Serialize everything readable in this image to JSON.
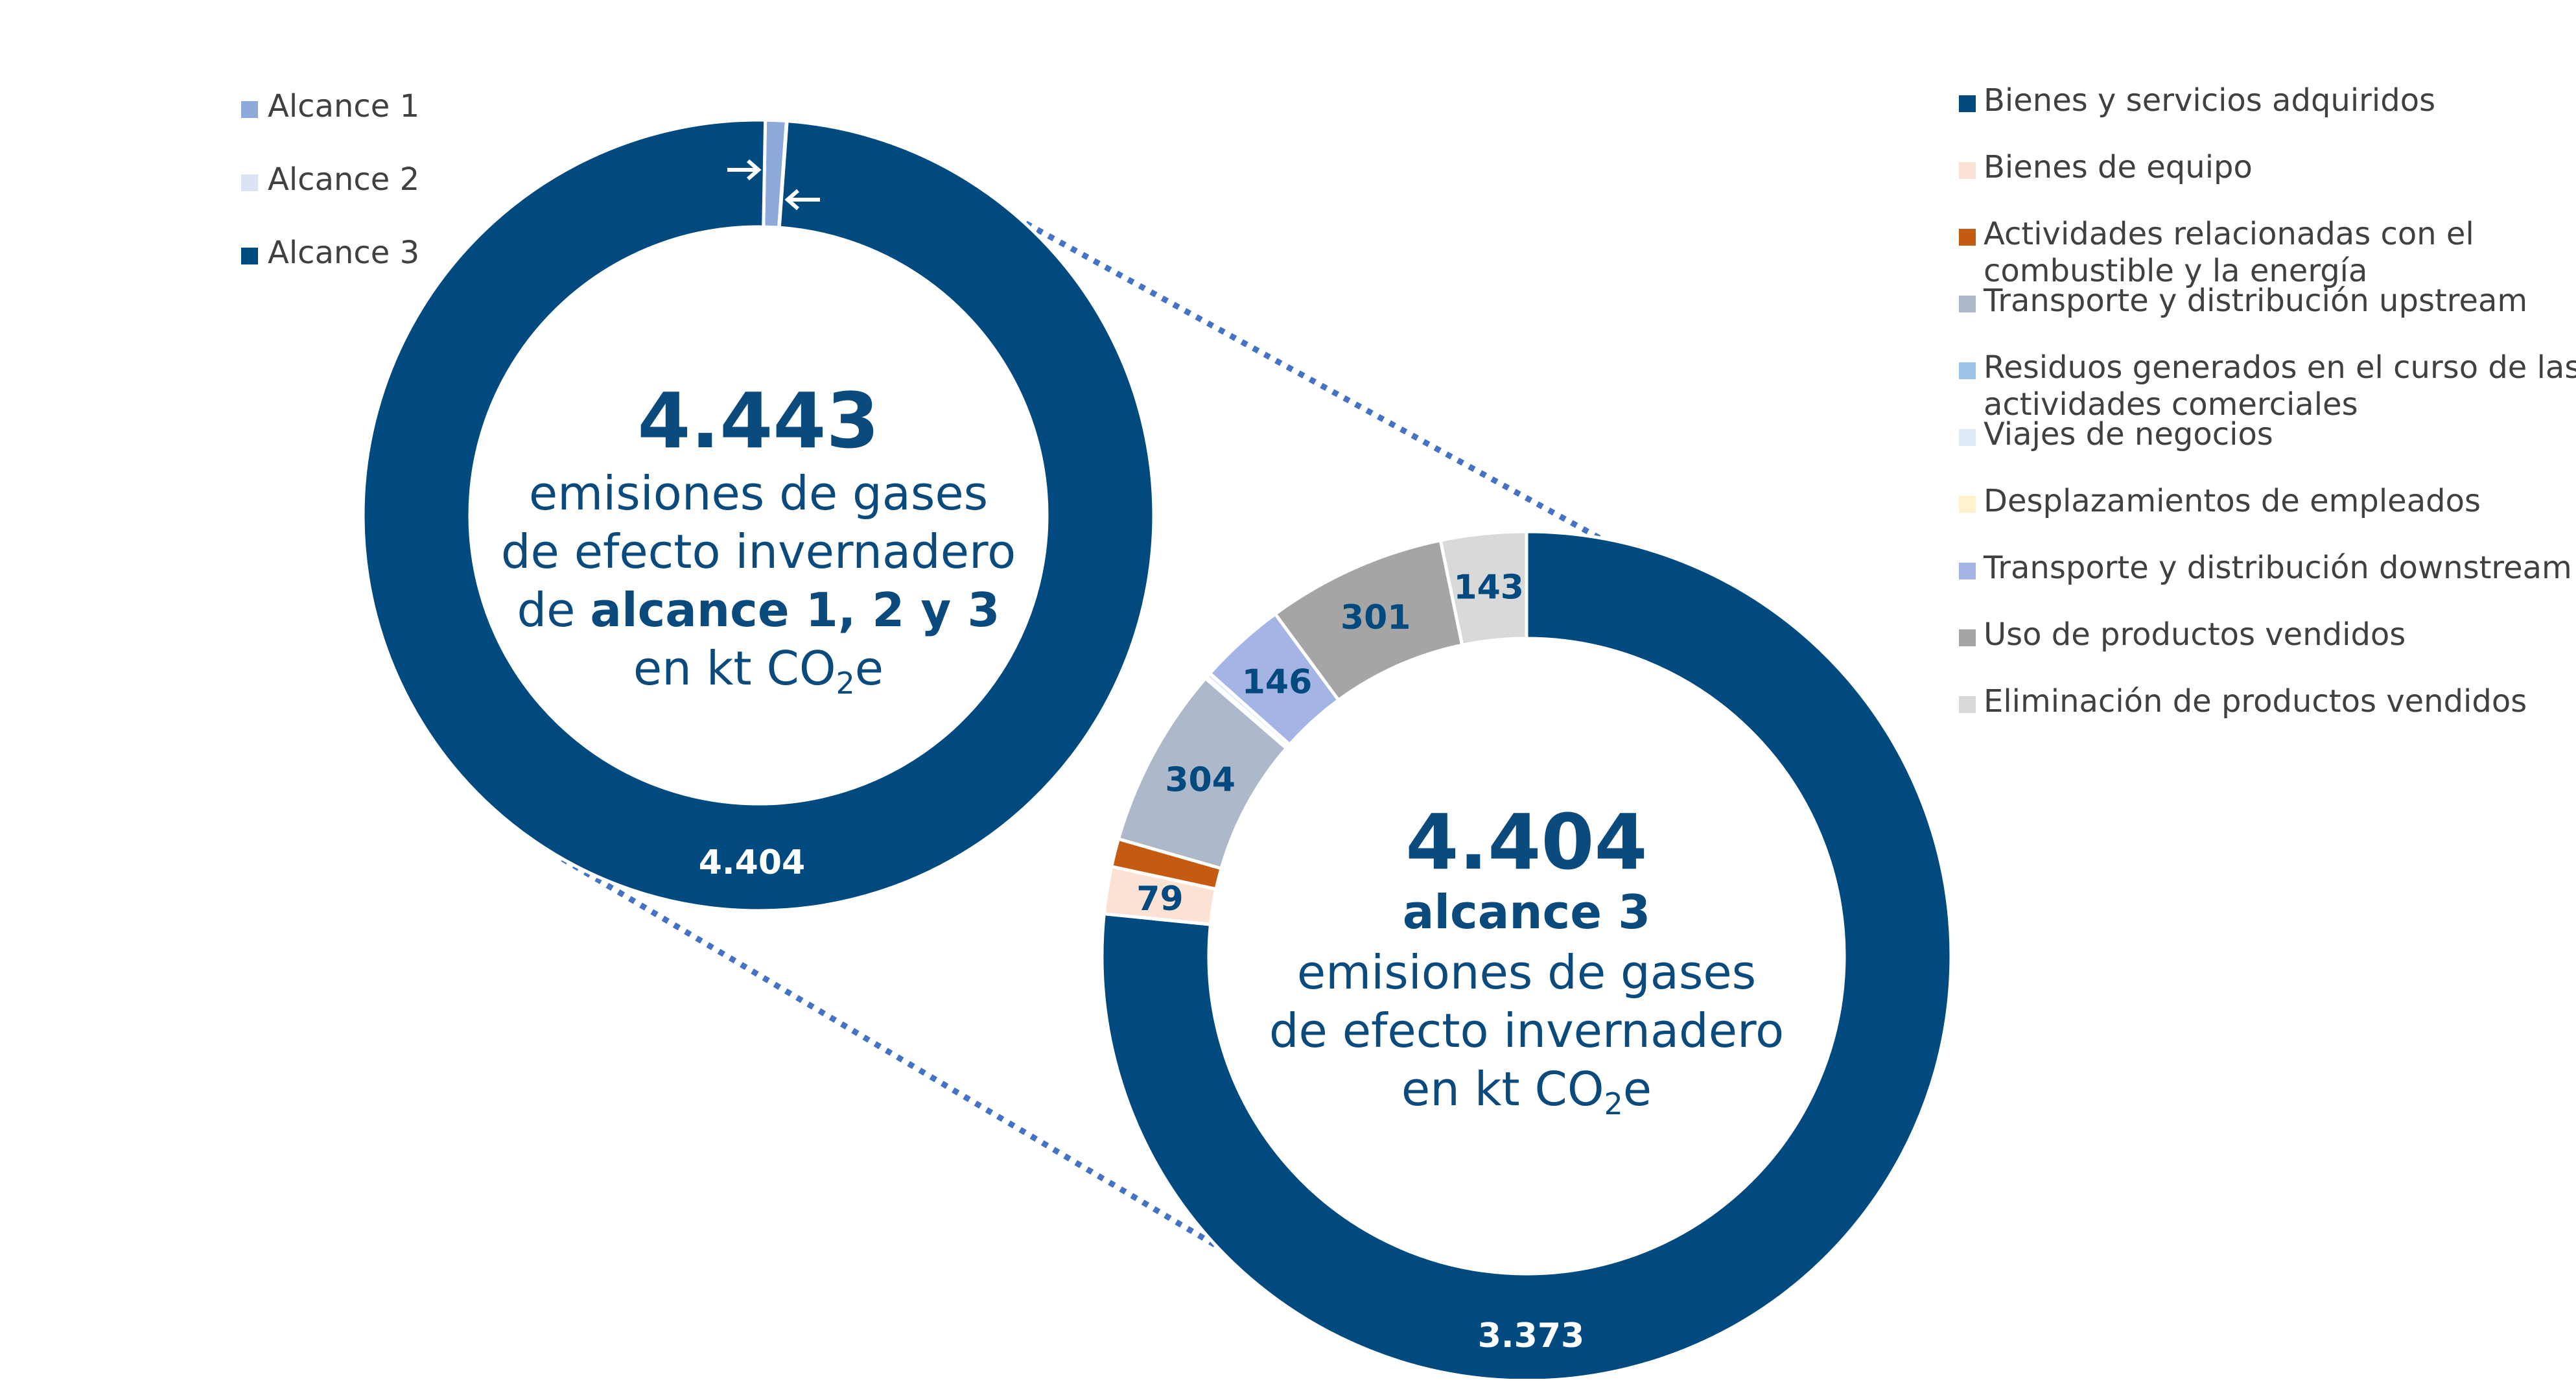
{
  "colors": {
    "dark_blue": "#004a7f",
    "text_blue": "#0b4a7d",
    "connector": "#4472c4"
  },
  "chart_data": [
    {
      "type": "pie",
      "variant": "donut",
      "title": "",
      "slices": [
        {
          "label": "Alcance 1",
          "value": 38,
          "display": "38",
          "color": "#8eaadb"
        },
        {
          "label": "Alcance 2",
          "value": 1,
          "display": "1",
          "color": "#dae3f3"
        },
        {
          "label": "Alcance 3",
          "value": 4404,
          "display": "4.404",
          "color": "#004a7f"
        }
      ],
      "legend": {
        "position": "top-left"
      },
      "center": {
        "total": "4.443",
        "line1": "emisiones de gases",
        "line2": "de efecto invernadero",
        "line3_prefix": "de ",
        "line3_bold": "alcance 1, 2 y 3",
        "line4_prefix": "en kt CO",
        "line4_sub": "2",
        "line4_suffix": "e"
      }
    },
    {
      "type": "pie",
      "variant": "donut",
      "title": "",
      "slices": [
        {
          "label": "Bienes y servicios adquiridos",
          "value": 3373,
          "display": "3.373",
          "color": "#004a7f"
        },
        {
          "label": "Bienes de equipo",
          "value": 79,
          "display": "79",
          "color": "#fbe2d5"
        },
        {
          "label": "Actividades relacionadas con el combustible y la energía",
          "value": 47,
          "display": "",
          "color": "#c55a11"
        },
        {
          "label": "Transporte y distribución upstream",
          "value": 304,
          "display": "304",
          "color": "#adb9ca"
        },
        {
          "label": "Residuos generados en el curso de las actividades comerciales",
          "value": 3,
          "display": "",
          "color": "#9dc3e6"
        },
        {
          "label": "Viajes de negocios",
          "value": 8,
          "display": "",
          "color": "#deebf7"
        },
        {
          "label": "Desplazamientos de empleados",
          "value": 0,
          "display": "",
          "color": "#fff2cc"
        },
        {
          "label": "Transporte y distribución downstream",
          "value": 146,
          "display": "146",
          "color": "#a4b4e4"
        },
        {
          "label": "Uso de productos vendidos",
          "value": 301,
          "display": "301",
          "color": "#a5a5a5"
        },
        {
          "label": "Eliminación de productos vendidos",
          "value": 143,
          "display": "143",
          "color": "#d9d9d9"
        }
      ],
      "legend": {
        "position": "top-right",
        "lines": [
          [
            "Bienes y servicios adquiridos"
          ],
          [
            "Bienes de equipo"
          ],
          [
            "Actividades relacionadas con el",
            "combustible y la energía"
          ],
          [
            "Transporte y distribución upstream"
          ],
          [
            "Residuos generados en el curso de las",
            "actividades comerciales"
          ],
          [
            "Viajes de negocios"
          ],
          [
            "Desplazamientos de empleados"
          ],
          [
            "Transporte y distribución downstream"
          ],
          [
            "Uso de productos vendidos"
          ],
          [
            "Eliminación de productos vendidos"
          ]
        ]
      },
      "center": {
        "total": "4.404",
        "line1_bold": "alcance 3",
        "line2": "emisiones de gases",
        "line3": "de efecto invernadero",
        "line4_prefix": "en kt CO",
        "line4_sub": "2",
        "line4_suffix": "e"
      }
    }
  ]
}
